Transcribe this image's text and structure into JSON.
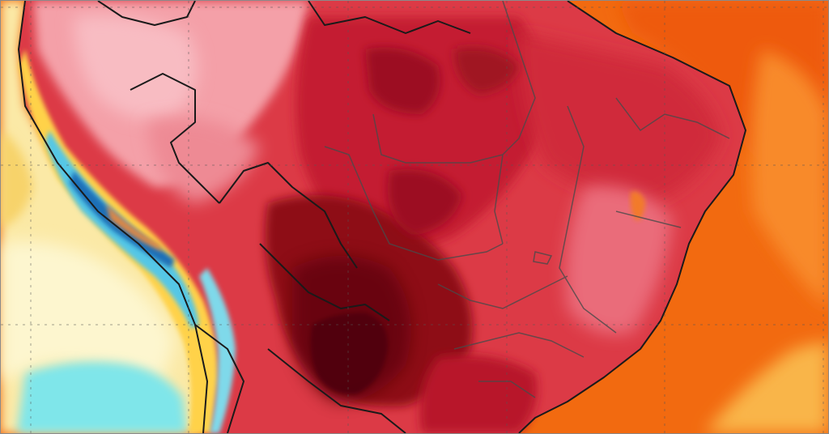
{
  "map": {
    "kind": "temperature-anomaly-heatmap",
    "region": "South America",
    "labels": [],
    "palette": {
      "ocean_orange": "#f26a10",
      "ocean_deep_orange": "#ee5a08",
      "pacific_pale_yellow": "#fbe9a6",
      "pacific_cream": "#fdf6cf",
      "pacific_cyan": "#7fe6ea",
      "land_pink": "#f4a0a8",
      "land_red": "#dc3a46",
      "land_crimson": "#c41f30",
      "land_dark_red": "#8e0a18",
      "hotspot_black_red": "#3d0007",
      "andes_blue": "#1f6fb8",
      "andes_cyan": "#55c7e6",
      "andes_yellow": "#ffd24a",
      "border_line": "#1a1a1a",
      "state_line": "#4a4a4a",
      "grid_line": "#555555"
    },
    "gridlines": {
      "style": "dashed",
      "visible": true
    }
  }
}
